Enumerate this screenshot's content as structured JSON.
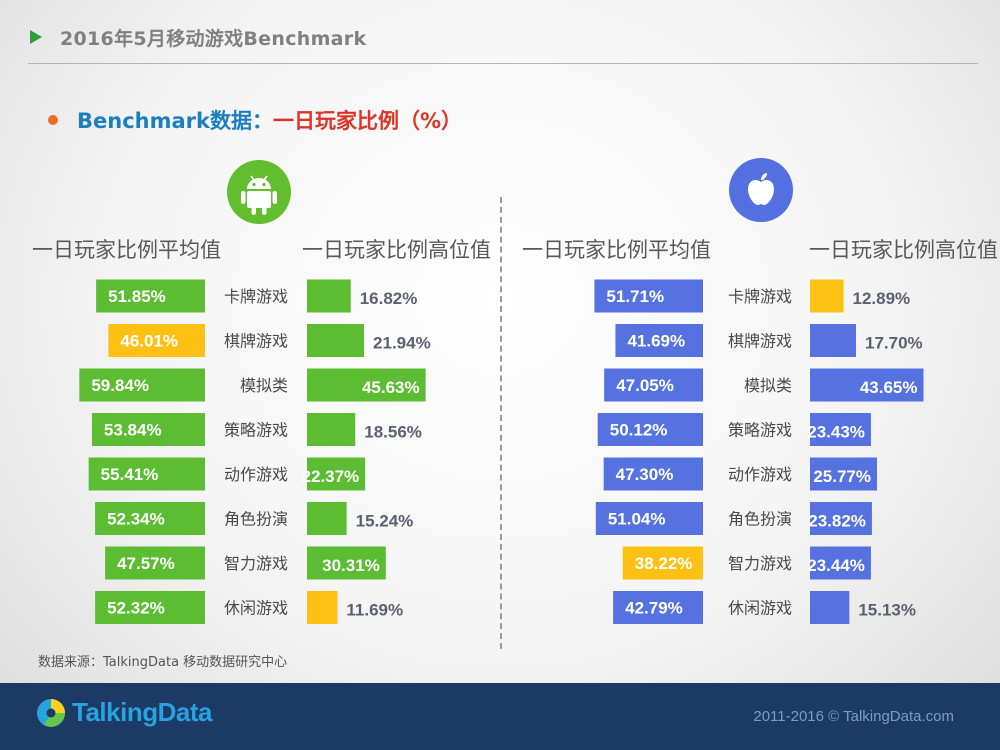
{
  "header": {
    "title": "2016年5月移动游戏Benchmark"
  },
  "subtitle": {
    "part1": "Benchmark数据：",
    "part2": "一日玩家比例（%）"
  },
  "icons": {
    "android": "android-robot-icon",
    "apple": "apple-icon",
    "header_marker": "triangle-icon",
    "bullet": "bullet-dot-icon",
    "brand": "talkingdata-logo-icon"
  },
  "colors": {
    "android_bar": "#5cbd32",
    "ios_bar": "#5572e0",
    "highlight_bar": "#fdc113",
    "label_dark": "#5a6170",
    "label_light": "#ffffff"
  },
  "columns": {
    "android_avg": "一日玩家比例平均值",
    "android_high": "一日玩家比例高位值",
    "ios_avg": "一日玩家比例平均值",
    "ios_high": "一日玩家比例高位值"
  },
  "source": "数据来源：TalkingData 移动数据研究中心",
  "footer": {
    "brand": "TalkingData",
    "copyright": "2011-2016 © TalkingData.com"
  },
  "chart_data": [
    {
      "type": "bar",
      "title": "Android",
      "categories": [
        "卡牌游戏",
        "棋牌游戏",
        "模拟类",
        "策略游戏",
        "动作游戏",
        "角色扮演",
        "智力游戏",
        "休闲游戏"
      ],
      "series": [
        {
          "name": "一日玩家比例平均值",
          "values": [
            51.85,
            46.01,
            59.84,
            53.84,
            55.41,
            52.34,
            47.57,
            52.32
          ],
          "labels": [
            "51.85%",
            "46.01%",
            "59.84%",
            "53.84%",
            "55.41%",
            "52.34%",
            "47.57%",
            "52.32%"
          ],
          "highlight": [
            1
          ]
        },
        {
          "name": "一日玩家比例高位值",
          "values": [
            16.82,
            21.94,
            45.63,
            18.56,
            22.37,
            15.24,
            30.31,
            11.69
          ],
          "labels": [
            "16.82%",
            "21.94%",
            "45.63%",
            "18.56%",
            "22.37%",
            "15.24%",
            "30.31%",
            "11.69%"
          ],
          "highlight": [
            7
          ]
        }
      ]
    },
    {
      "type": "bar",
      "title": "iOS",
      "categories": [
        "卡牌游戏",
        "棋牌游戏",
        "模拟类",
        "策略游戏",
        "动作游戏",
        "角色扮演",
        "智力游戏",
        "休闲游戏"
      ],
      "series": [
        {
          "name": "一日玩家比例平均值",
          "values": [
            51.71,
            41.69,
            47.05,
            50.12,
            47.3,
            51.04,
            38.22,
            42.79
          ],
          "labels": [
            "51.71%",
            "41.69%",
            "47.05%",
            "50.12%",
            "47.30%",
            "51.04%",
            "38.22%",
            "42.79%"
          ],
          "highlight": [
            6
          ]
        },
        {
          "name": "一日玩家比例高位值",
          "values": [
            12.89,
            17.7,
            43.65,
            23.43,
            25.77,
            23.82,
            23.44,
            15.13
          ],
          "labels": [
            "12.89%",
            "17.70%",
            "43.65%",
            "23.43%",
            "25.77%",
            "23.82%",
            "23.44%",
            "15.13%"
          ],
          "highlight": [
            0
          ]
        }
      ]
    }
  ]
}
